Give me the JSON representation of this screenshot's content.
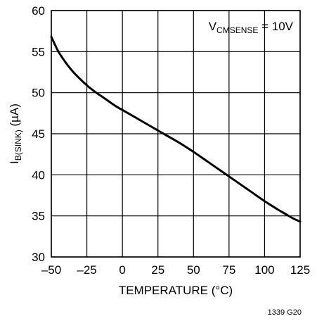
{
  "chart_data": {
    "type": "line",
    "title": "",
    "xlabel": "TEMPERATURE (°C)",
    "ylabel": {
      "main": "I",
      "sub": "B(SINK)",
      "unit": " (µA)"
    },
    "xlim": [
      -50,
      125
    ],
    "ylim": [
      30,
      60
    ],
    "x_ticks": [
      -50,
      -25,
      0,
      25,
      50,
      75,
      100,
      125
    ],
    "x_tick_labels": [
      "–50",
      "–25",
      "0",
      "25",
      "50",
      "75",
      "100",
      "125"
    ],
    "y_ticks": [
      30,
      35,
      40,
      45,
      50,
      55,
      60
    ],
    "y_tick_labels": [
      "30",
      "35",
      "40",
      "45",
      "50",
      "55",
      "60"
    ],
    "grid": true,
    "annotation": {
      "main": "V",
      "sub": "CMSENSE",
      "rest": " = 10V"
    },
    "figure_code": "1339 G20",
    "series": [
      {
        "x": [
          -50,
          -45,
          -40,
          -35,
          -30,
          -25,
          -20,
          -15,
          -10,
          -5,
          0,
          10,
          20,
          25,
          30,
          40,
          50,
          60,
          70,
          75,
          80,
          90,
          100,
          110,
          115,
          120,
          125
        ],
        "y": [
          56.8,
          55.0,
          53.7,
          52.6,
          51.7,
          50.9,
          50.2,
          49.6,
          49.0,
          48.4,
          47.9,
          46.9,
          45.9,
          45.4,
          44.9,
          43.9,
          42.8,
          41.6,
          40.4,
          39.8,
          39.2,
          38.0,
          36.8,
          35.7,
          35.2,
          34.7,
          34.3
        ]
      }
    ]
  }
}
